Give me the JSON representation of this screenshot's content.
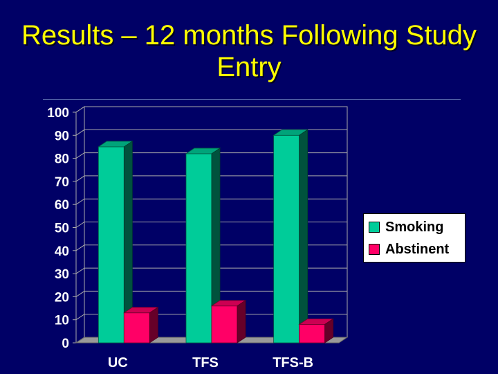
{
  "slide": {
    "title": "Results – 12 months Following Study Entry"
  },
  "colors": {
    "background": "#000066",
    "title": "#FFFF00",
    "smoking": "#00CC99",
    "abstinent": "#FF0066"
  },
  "chart_data": {
    "type": "bar",
    "style": "3d-clustered",
    "categories": [
      "UC",
      "TFS",
      "TFS-B"
    ],
    "series": [
      {
        "name": "Smoking",
        "values": [
          85,
          82,
          90
        ],
        "color": "#00CC99"
      },
      {
        "name": "Abstinent",
        "values": [
          13,
          16,
          8
        ],
        "color": "#FF0066"
      }
    ],
    "ylim": [
      0,
      100
    ],
    "yticks": [
      0,
      10,
      20,
      30,
      40,
      50,
      60,
      70,
      80,
      90,
      100
    ],
    "grid": true,
    "legend_position": "right"
  }
}
